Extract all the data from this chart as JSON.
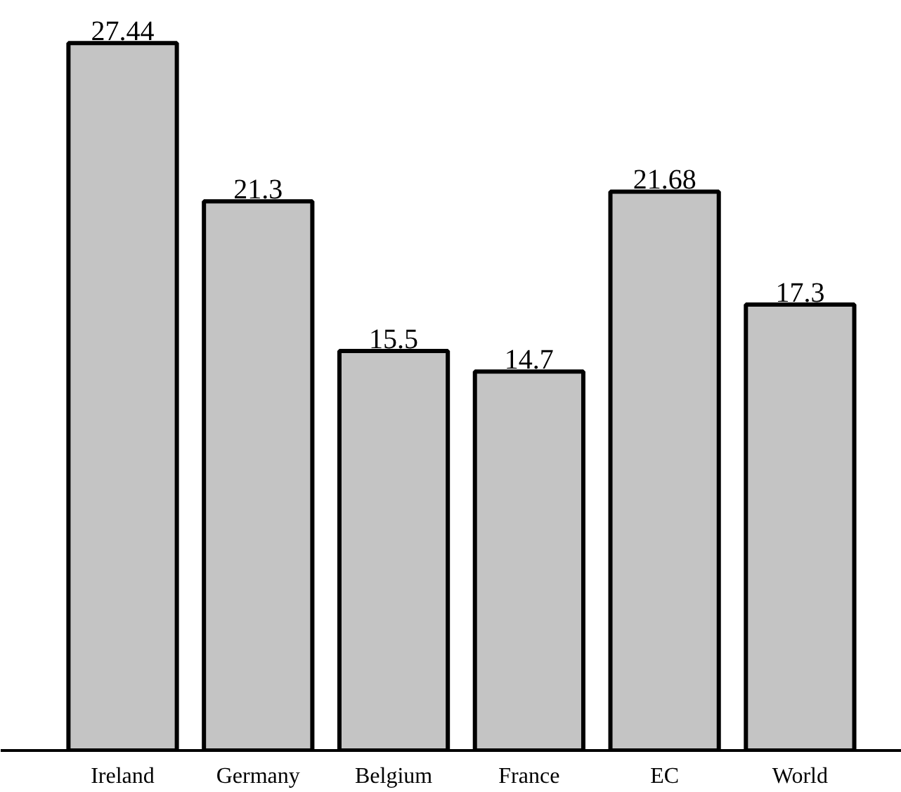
{
  "chart_data": {
    "type": "bar",
    "categories": [
      "Ireland",
      "Germany",
      "Belgium",
      "France",
      "EC",
      "World"
    ],
    "values": [
      27.44,
      21.3,
      15.5,
      14.7,
      21.68,
      17.3
    ],
    "color": "#c4c4c4",
    "data_labels": true
  }
}
